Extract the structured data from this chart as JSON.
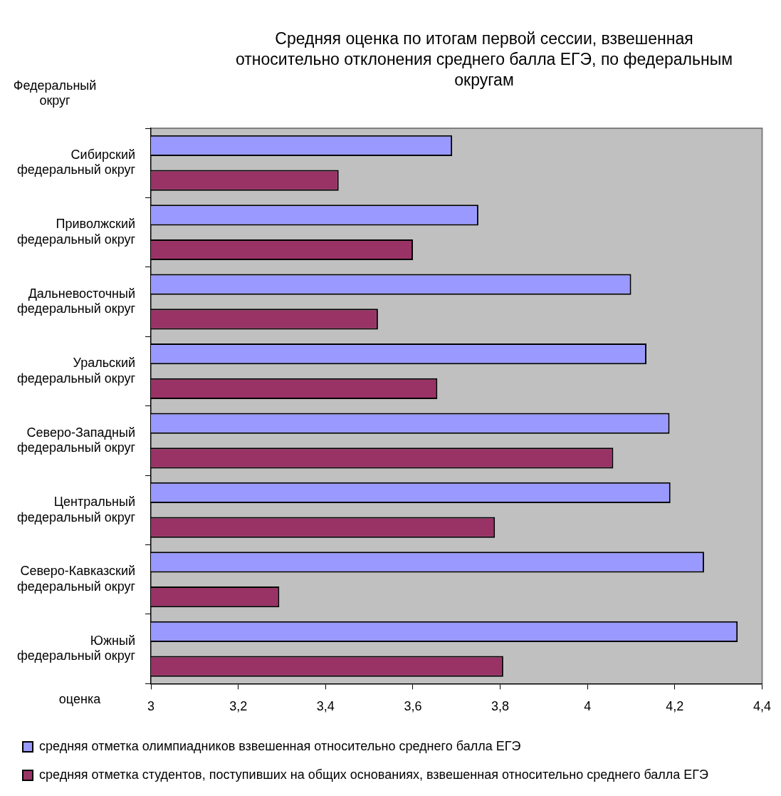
{
  "chart_data": {
    "type": "bar",
    "orientation": "horizontal",
    "title": "Средняя оценка по итогам первой сессии, взвешенная относительно отклонения среднего балла ЕГЭ, по федеральным округам",
    "ylabel": "Федеральный округ",
    "xlabel": "оценка",
    "categories": [
      "Сибирский федеральный округ",
      "Приволжский федеральный округ",
      "Дальневосточный федеральный округ",
      "Уральский федеральный округ",
      "Северо-Западный федеральный округ",
      "Центральный федеральный округ",
      "Северо-Кавказский федеральный округ",
      "Южный федеральный округ"
    ],
    "series": [
      {
        "name": "средняя отметка олимпиадников взвешенная относительно среднего балла ЕГЭ",
        "color": "#9999ff",
        "values": [
          3.69,
          3.75,
          4.1,
          4.135,
          4.188,
          4.19,
          4.267,
          4.344
        ]
      },
      {
        "name": "средняя отметка студентов, поступивших на общих основаниях, взвешенная относительно среднего балла ЕГЭ",
        "color": "#993366",
        "values": [
          3.43,
          3.6,
          3.52,
          3.656,
          4.059,
          3.788,
          3.294,
          3.807
        ]
      }
    ],
    "xlim": [
      3,
      4.4
    ],
    "xticks": [
      {
        "value": 3,
        "label": "3"
      },
      {
        "value": 3.2,
        "label": "3,2"
      },
      {
        "value": 3.4,
        "label": "3,4"
      },
      {
        "value": 3.6,
        "label": "3,6"
      },
      {
        "value": 3.8,
        "label": "3,8"
      },
      {
        "value": 4,
        "label": "4"
      },
      {
        "value": 4.2,
        "label": "4,2"
      },
      {
        "value": 4.4,
        "label": "4,4"
      }
    ],
    "grid": false,
    "legend": "bottom"
  }
}
